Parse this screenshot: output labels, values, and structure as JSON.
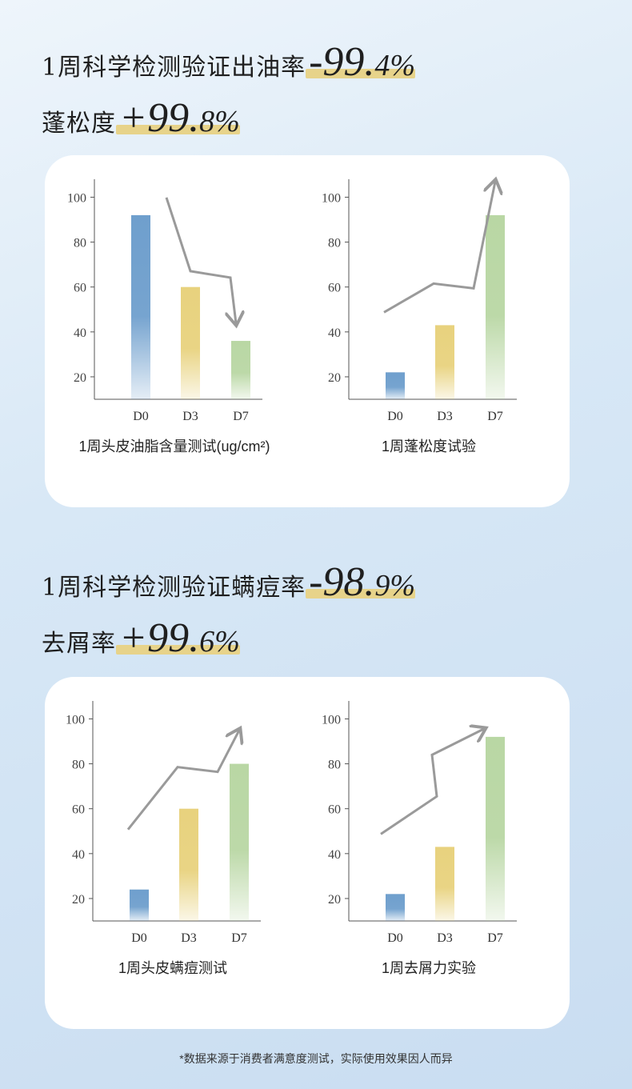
{
  "headline1": {
    "label": "1周科学检测验证出油率",
    "stat_main": "-99.",
    "stat_dec": "4%"
  },
  "headline2": {
    "label": "蓬松度",
    "stat_main": "+99.",
    "stat_dec": "8%"
  },
  "headline3": {
    "label": "1周科学检测验证螨痘率",
    "stat_main": "-98.",
    "stat_dec": "9%"
  },
  "headline4": {
    "label": "去屑率",
    "stat_main": "+99.",
    "stat_dec": "6%"
  },
  "colors": {
    "d0": "#6f9fcd",
    "d3": "#e8d27e",
    "d7": "#b9d7a4",
    "arrow": "#9a9a9a",
    "highlight": "#e7d38a"
  },
  "chart_data": [
    {
      "type": "bar",
      "title": "1周头皮油脂含量测试(ug/cm²)",
      "categories": [
        "D0",
        "D3",
        "D7"
      ],
      "values": [
        92,
        60,
        36
      ],
      "yticks": [
        20,
        40,
        60,
        80,
        100
      ],
      "trend": "down"
    },
    {
      "type": "bar",
      "title": "1周蓬松度试验",
      "categories": [
        "D0",
        "D3",
        "D7"
      ],
      "values": [
        22,
        43,
        92
      ],
      "yticks": [
        20,
        40,
        60,
        80,
        100
      ],
      "trend": "up"
    },
    {
      "type": "bar",
      "title": "1周头皮螨痘测试",
      "categories": [
        "D0",
        "D3",
        "D7"
      ],
      "values": [
        24,
        60,
        80
      ],
      "yticks": [
        20,
        40,
        60,
        80,
        100
      ],
      "trend": "up"
    },
    {
      "type": "bar",
      "title": "1周去屑力实验",
      "categories": [
        "D0",
        "D3",
        "D7"
      ],
      "values": [
        22,
        43,
        92
      ],
      "yticks": [
        20,
        40,
        60,
        80,
        100
      ],
      "trend": "up"
    }
  ],
  "footnote": "*数据来源于消费者满意度测试，实际使用效果因人而异"
}
